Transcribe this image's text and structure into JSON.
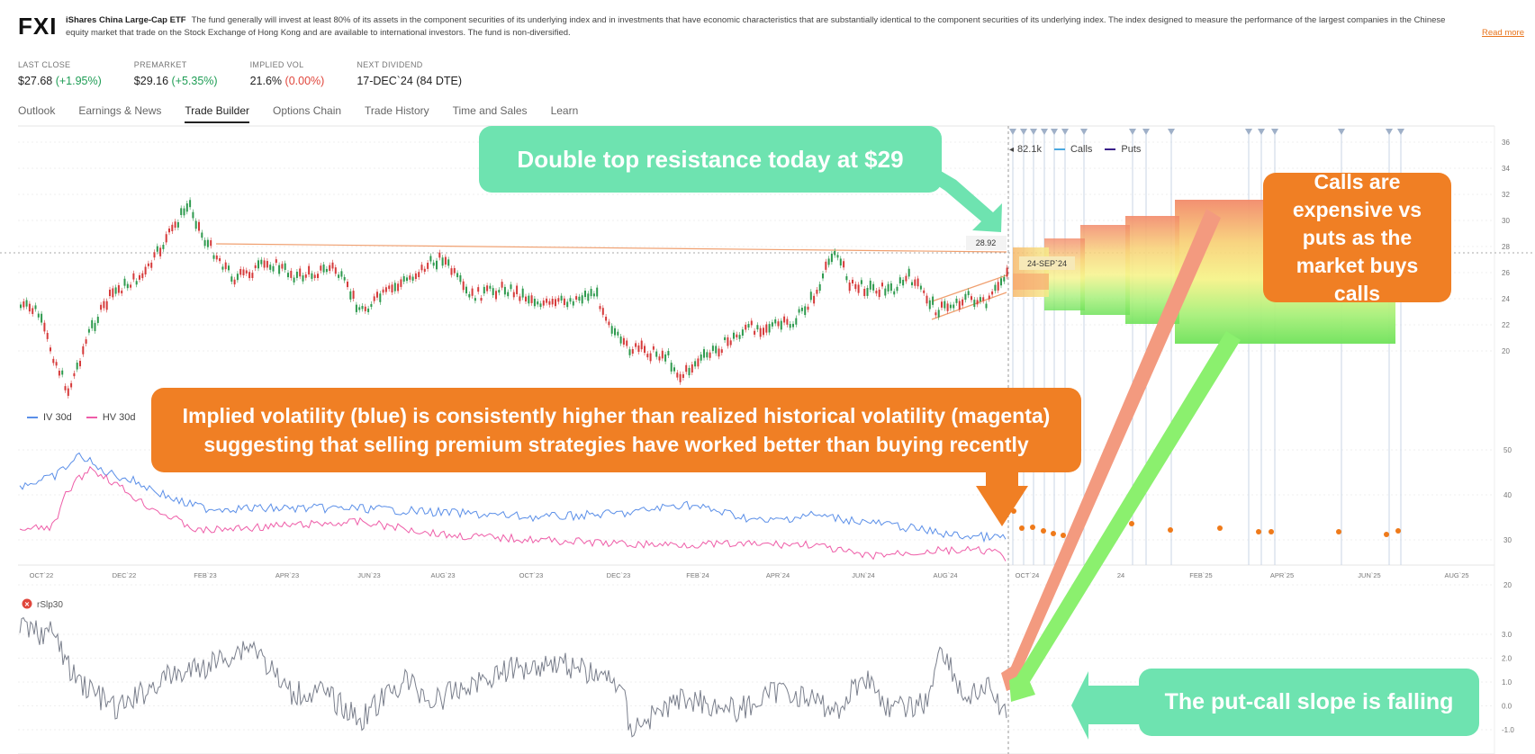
{
  "header": {
    "ticker": "FXI",
    "fund_name": "iShares China Large-Cap ETF",
    "description": "The fund generally will invest at least 80% of its assets in the component securities of its underlying index and in investments that have economic characteristics that are substantially identical to the component securities of its underlying index. The index designed to measure the performance of the largest companies in the Chinese equity market that trade on the Stock Exchange of Hong Kong and are available to international investors. The fund is non-diversified.",
    "read_more": "Read more"
  },
  "stats": [
    {
      "label": "LAST CLOSE",
      "value": "$27.68",
      "change": "(+1.95%)",
      "tone": "pos"
    },
    {
      "label": "PREMARKET",
      "value": "$29.16",
      "change": "(+5.35%)",
      "tone": "pos"
    },
    {
      "label": "IMPLIED VOL",
      "value": "21.6%",
      "change": "(0.00%)",
      "tone": "neg"
    },
    {
      "label": "NEXT DIVIDEND",
      "value": "17-DEC`24 (84 DTE)",
      "change": "",
      "tone": ""
    }
  ],
  "tabs": [
    "Outlook",
    "Earnings & News",
    "Trade Builder",
    "Options Chain",
    "Trade History",
    "Time and Sales",
    "Learn"
  ],
  "active_tab": "Trade Builder",
  "price_chart": {
    "y_ticks": [
      "36",
      "34",
      "32",
      "30",
      "28",
      "26",
      "24",
      "22",
      "20"
    ],
    "price_label": "28.92",
    "date_label": "24-SEP`24",
    "volume_legend": "82.1k",
    "calls_label": "Calls",
    "puts_label": "Puts",
    "calls_color": "#4aa8e0",
    "puts_color": "#3a1f8a"
  },
  "vol_chart": {
    "iv_label": "IV 30d",
    "hv_label": "HV 30d",
    "iv_color": "#5b8fe8",
    "hv_color": "#ee5da8",
    "y_ticks": [
      "50",
      "40",
      "30",
      "20"
    ],
    "x_ticks": [
      "OCT`22",
      "DEC`22",
      "FEB`23",
      "APR`23",
      "JUN`23",
      "AUG`23",
      "OCT`23",
      "DEC`23",
      "FEB`24",
      "APR`24",
      "JUN`24",
      "AUG`24",
      "OCT`24",
      "24",
      "FEB`25",
      "APR`25",
      "JUN`25",
      "AUG`25"
    ]
  },
  "slope_chart": {
    "indicator": "rSlp30",
    "y_ticks": [
      "3.0",
      "2.0",
      "1.0",
      "0.0",
      "-1.0"
    ]
  },
  "annotations": {
    "double_top": "Double top resistance today at $29",
    "calls_expensive": "Calls are expensive vs puts as the market buys calls",
    "implied_vol": "Implied volatility (blue) is consistently higher than realized historical volatility (magenta) suggesting that selling premium strategies have worked better than buying recently",
    "slope_falling": "The put-call slope is falling"
  },
  "colors": {
    "callout_green": "#6ee3b0",
    "callout_orange": "#f07f24",
    "accent_link": "#e8761f",
    "candle_up": "#2e9a4e",
    "candle_down": "#d63a3a"
  }
}
